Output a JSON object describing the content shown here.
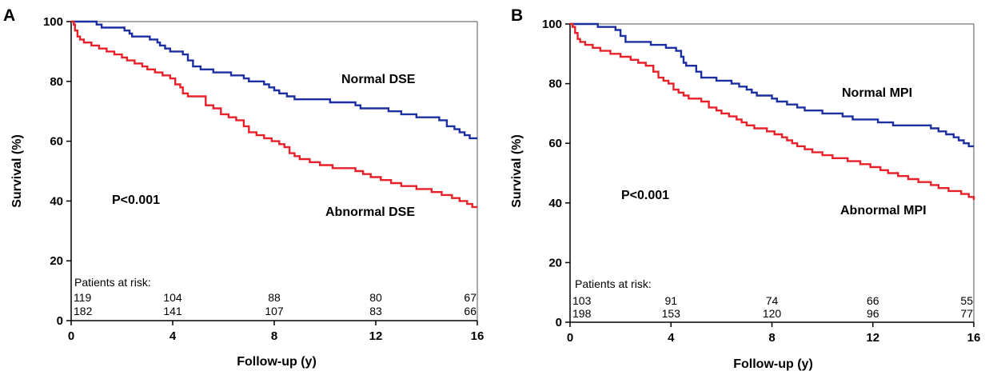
{
  "panels": [
    {
      "letter": "A",
      "ylabel": "Survival (%)",
      "xlabel": "Follow-up (y)",
      "p_value": "P<0.001",
      "risk_title": "Patients at risk:",
      "risk_rows": [
        [
          "119",
          "104",
          "88",
          "80",
          "67"
        ],
        [
          "182",
          "141",
          "107",
          "83",
          "66"
        ]
      ]
    },
    {
      "letter": "B",
      "ylabel": "Survival (%)",
      "xlabel": "Follow-up (y)",
      "p_value": "P<0.001",
      "risk_title": "Patients at risk:",
      "risk_rows": [
        [
          "103",
          "91",
          "74",
          "66",
          "55"
        ],
        [
          "198",
          "153",
          "120",
          "96",
          "77"
        ]
      ]
    }
  ],
  "chart_data": [
    {
      "type": "line",
      "step": true,
      "xlabel": "Follow-up (y)",
      "ylabel": "Survival (%)",
      "xlim": [
        0,
        16
      ],
      "ylim": [
        0,
        100
      ],
      "xticks": [
        0,
        4,
        8,
        12,
        16
      ],
      "yticks": [
        0,
        20,
        40,
        60,
        80,
        100
      ],
      "grid": false,
      "annotations": [
        "P<0.001"
      ],
      "series": [
        {
          "name": "Normal DSE",
          "color": "#1c2fa0",
          "points": [
            [
              0,
              100
            ],
            [
              0.9,
              100
            ],
            [
              1.0,
              99
            ],
            [
              1.2,
              98
            ],
            [
              2.1,
              97
            ],
            [
              2.3,
              96
            ],
            [
              2.4,
              95
            ],
            [
              3.0,
              95
            ],
            [
              3.1,
              94
            ],
            [
              3.4,
              93
            ],
            [
              3.5,
              92
            ],
            [
              3.7,
              91
            ],
            [
              3.9,
              90
            ],
            [
              4.1,
              90
            ],
            [
              4.4,
              89
            ],
            [
              4.6,
              87
            ],
            [
              4.8,
              85
            ],
            [
              5.1,
              84
            ],
            [
              5.6,
              83
            ],
            [
              6.3,
              82
            ],
            [
              6.8,
              81
            ],
            [
              7.0,
              80
            ],
            [
              7.6,
              79
            ],
            [
              7.8,
              78
            ],
            [
              8.0,
              77
            ],
            [
              8.2,
              76
            ],
            [
              8.5,
              75
            ],
            [
              8.8,
              74
            ],
            [
              9.5,
              74
            ],
            [
              10.2,
              73
            ],
            [
              10.8,
              73
            ],
            [
              11.2,
              72
            ],
            [
              11.4,
              71
            ],
            [
              12.0,
              71
            ],
            [
              12.5,
              70
            ],
            [
              13.0,
              69
            ],
            [
              13.6,
              68
            ],
            [
              14.2,
              68
            ],
            [
              14.5,
              67
            ],
            [
              14.8,
              65
            ],
            [
              15.1,
              64
            ],
            [
              15.3,
              63
            ],
            [
              15.5,
              62
            ],
            [
              15.7,
              61
            ],
            [
              16.0,
              61
            ]
          ]
        },
        {
          "name": "Abnormal DSE",
          "color": "#e8202a",
          "points": [
            [
              0,
              100
            ],
            [
              0.1,
              99
            ],
            [
              0.15,
              97
            ],
            [
              0.25,
              95
            ],
            [
              0.35,
              94
            ],
            [
              0.5,
              93
            ],
            [
              0.8,
              92
            ],
            [
              1.1,
              91
            ],
            [
              1.4,
              90
            ],
            [
              1.7,
              89
            ],
            [
              2.0,
              88
            ],
            [
              2.2,
              87
            ],
            [
              2.5,
              86
            ],
            [
              2.8,
              85
            ],
            [
              3.0,
              84
            ],
            [
              3.3,
              83
            ],
            [
              3.6,
              82
            ],
            [
              3.9,
              81
            ],
            [
              4.1,
              79
            ],
            [
              4.3,
              78
            ],
            [
              4.4,
              76
            ],
            [
              4.6,
              75
            ],
            [
              5.0,
              75
            ],
            [
              5.3,
              72
            ],
            [
              5.6,
              71
            ],
            [
              5.9,
              69
            ],
            [
              6.2,
              68
            ],
            [
              6.5,
              67
            ],
            [
              6.8,
              65
            ],
            [
              7.0,
              63
            ],
            [
              7.3,
              62
            ],
            [
              7.6,
              61
            ],
            [
              7.9,
              60
            ],
            [
              8.2,
              59
            ],
            [
              8.4,
              58
            ],
            [
              8.6,
              56
            ],
            [
              8.8,
              55
            ],
            [
              9.0,
              54
            ],
            [
              9.4,
              53
            ],
            [
              9.8,
              52
            ],
            [
              10.3,
              51
            ],
            [
              10.8,
              51
            ],
            [
              11.2,
              50
            ],
            [
              11.5,
              49
            ],
            [
              11.8,
              48
            ],
            [
              12.2,
              47
            ],
            [
              12.6,
              46
            ],
            [
              13.0,
              45
            ],
            [
              13.6,
              44
            ],
            [
              14.2,
              43
            ],
            [
              14.6,
              42
            ],
            [
              15.0,
              41
            ],
            [
              15.3,
              40
            ],
            [
              15.6,
              39
            ],
            [
              15.8,
              38
            ],
            [
              16.0,
              38
            ]
          ]
        }
      ]
    },
    {
      "type": "line",
      "step": true,
      "xlabel": "Follow-up (y)",
      "ylabel": "Survival (%)",
      "xlim": [
        0,
        16
      ],
      "ylim": [
        0,
        100
      ],
      "xticks": [
        0,
        4,
        8,
        12,
        16
      ],
      "yticks": [
        0,
        20,
        40,
        60,
        80,
        100
      ],
      "grid": false,
      "annotations": [
        "P<0.001"
      ],
      "series": [
        {
          "name": "Normal MPI",
          "color": "#1c2fa0",
          "points": [
            [
              0,
              100
            ],
            [
              1.0,
              100
            ],
            [
              1.1,
              99
            ],
            [
              1.8,
              98
            ],
            [
              2.0,
              96
            ],
            [
              2.2,
              94
            ],
            [
              3.0,
              94
            ],
            [
              3.2,
              93
            ],
            [
              3.8,
              92
            ],
            [
              4.2,
              91
            ],
            [
              4.4,
              89
            ],
            [
              4.5,
              87
            ],
            [
              4.6,
              86
            ],
            [
              5.0,
              84
            ],
            [
              5.2,
              82
            ],
            [
              5.8,
              81
            ],
            [
              6.4,
              80
            ],
            [
              6.7,
              79
            ],
            [
              7.0,
              78
            ],
            [
              7.2,
              77
            ],
            [
              7.4,
              76
            ],
            [
              8.0,
              75
            ],
            [
              8.2,
              74
            ],
            [
              8.6,
              73
            ],
            [
              9.0,
              72
            ],
            [
              9.3,
              71
            ],
            [
              10.0,
              70
            ],
            [
              10.8,
              69
            ],
            [
              11.2,
              68
            ],
            [
              12.2,
              67
            ],
            [
              12.8,
              66
            ],
            [
              13.4,
              66
            ],
            [
              14.1,
              66
            ],
            [
              14.3,
              65
            ],
            [
              14.6,
              64
            ],
            [
              14.9,
              63
            ],
            [
              15.2,
              62
            ],
            [
              15.4,
              61
            ],
            [
              15.6,
              60
            ],
            [
              15.8,
              59
            ],
            [
              16.0,
              59
            ]
          ]
        },
        {
          "name": "Abnormal MPI",
          "color": "#e8202a",
          "points": [
            [
              0,
              100
            ],
            [
              0.1,
              99
            ],
            [
              0.2,
              97
            ],
            [
              0.3,
              95
            ],
            [
              0.4,
              94
            ],
            [
              0.6,
              93
            ],
            [
              0.9,
              92
            ],
            [
              1.2,
              91
            ],
            [
              1.6,
              90
            ],
            [
              2.0,
              89
            ],
            [
              2.4,
              88
            ],
            [
              2.7,
              87
            ],
            [
              3.0,
              86
            ],
            [
              3.3,
              84
            ],
            [
              3.5,
              82
            ],
            [
              3.7,
              81
            ],
            [
              3.9,
              80
            ],
            [
              4.1,
              78
            ],
            [
              4.3,
              77
            ],
            [
              4.5,
              76
            ],
            [
              4.7,
              75
            ],
            [
              5.2,
              74
            ],
            [
              5.5,
              72
            ],
            [
              5.8,
              71
            ],
            [
              6.0,
              70
            ],
            [
              6.3,
              69
            ],
            [
              6.6,
              68
            ],
            [
              6.8,
              67
            ],
            [
              7.0,
              66
            ],
            [
              7.3,
              65
            ],
            [
              7.8,
              64
            ],
            [
              8.1,
              63
            ],
            [
              8.4,
              62
            ],
            [
              8.6,
              61
            ],
            [
              8.8,
              60
            ],
            [
              9.0,
              59
            ],
            [
              9.3,
              58
            ],
            [
              9.6,
              57
            ],
            [
              10.0,
              56
            ],
            [
              10.4,
              55
            ],
            [
              11.0,
              54
            ],
            [
              11.5,
              53
            ],
            [
              11.9,
              52
            ],
            [
              12.3,
              51
            ],
            [
              12.6,
              50
            ],
            [
              13.0,
              49
            ],
            [
              13.4,
              48
            ],
            [
              13.8,
              47
            ],
            [
              14.3,
              46
            ],
            [
              14.6,
              45
            ],
            [
              15.0,
              44
            ],
            [
              15.5,
              43
            ],
            [
              15.8,
              42
            ],
            [
              16.0,
              41
            ]
          ]
        }
      ]
    }
  ]
}
